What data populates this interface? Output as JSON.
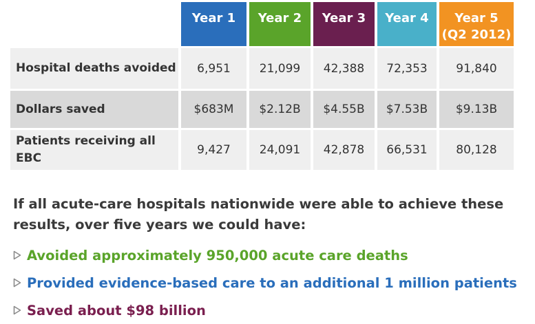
{
  "table": {
    "columns": [
      {
        "line1": "Year 1",
        "line2": "",
        "color": "#2a6ebb"
      },
      {
        "line1": "Year 2",
        "line2": "",
        "color": "#5aa42a"
      },
      {
        "line1": "Year 3",
        "line2": "",
        "color": "#6a1f4f"
      },
      {
        "line1": "Year 4",
        "line2": "",
        "color": "#49b0c9"
      },
      {
        "line1": "Year 5",
        "line2": "(Q2 2012)",
        "color": "#f29322"
      }
    ],
    "rows": [
      {
        "label": "Hospital deaths avoided",
        "values": [
          "6,951",
          "21,099",
          "42,388",
          "72,353",
          "91,840"
        ]
      },
      {
        "label": "Dollars saved",
        "values": [
          "$683M",
          "$2.12B",
          "$4.55B",
          "$7.53B",
          "$9.13B"
        ]
      },
      {
        "label": "Patients receiving all EBC",
        "values": [
          "9,427",
          "24,091",
          "42,878",
          "66,531",
          "80,128"
        ]
      }
    ]
  },
  "summary": "If all acute-care hospitals nationwide were able to achieve these results, over five years we could have:",
  "bullets": [
    {
      "text": "Avoided approximately 950,000 acute care deaths",
      "color": "#5aa42a",
      "icon": "triangle-bullet-icon"
    },
    {
      "text": "Provided evidence-based care to an additional 1 million patients",
      "color": "#2a6ebb",
      "icon": "triangle-bullet-icon"
    },
    {
      "text": "Saved about $98 billion",
      "color": "#7a1f4f",
      "icon": "triangle-bullet-icon"
    }
  ]
}
